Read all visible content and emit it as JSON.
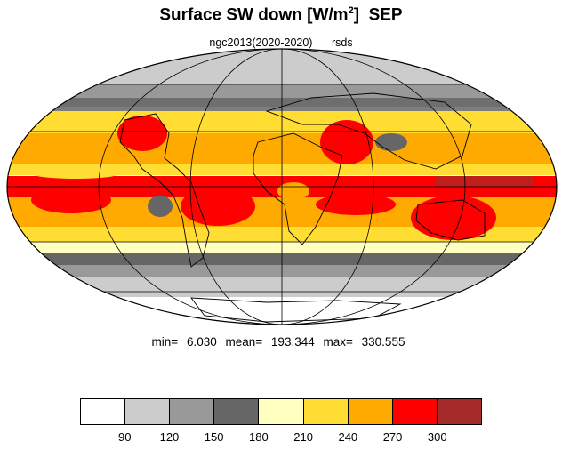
{
  "title": "Surface SW down",
  "units_base": "W/m",
  "units_sup": "2",
  "month": "SEP",
  "subtitle": {
    "source": "ngc2013(2020-2020)",
    "variable": "rsds"
  },
  "stats": {
    "min_label": "min=",
    "min": "6.030",
    "mean_label": "mean=",
    "mean": "193.344",
    "max_label": "max=",
    "max": "330.555"
  },
  "legend": {
    "colors": [
      "#ffffff",
      "#cccccc",
      "#999999",
      "#666666",
      "#ffffc0",
      "#ffdd33",
      "#ffaa00",
      "#ff0000",
      "#a52a2a"
    ],
    "ticks": [
      "90",
      "120",
      "150",
      "180",
      "210",
      "240",
      "270",
      "300"
    ]
  }
}
